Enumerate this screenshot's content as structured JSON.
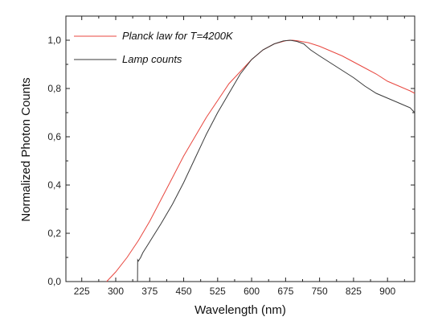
{
  "chart_data": {
    "type": "line",
    "title": "",
    "xlabel": "Wavelength (nm)",
    "ylabel": "Normalized Photon Counts",
    "xlim": [
      190,
      960
    ],
    "ylim": [
      0,
      1.1
    ],
    "x_ticks": [
      225,
      300,
      375,
      450,
      525,
      600,
      675,
      750,
      825,
      900
    ],
    "x_tick_labels": [
      "225",
      "300",
      "375",
      "450",
      "525",
      "600",
      "675",
      "750",
      "825",
      "900"
    ],
    "y_ticks": [
      0,
      0.2,
      0.4,
      0.6,
      0.8,
      1.0
    ],
    "y_tick_labels": [
      "0,0",
      "0,2",
      "0,4",
      "0,6",
      "0,8",
      "1,0"
    ],
    "grid": false,
    "legend_position": "top-left",
    "series": [
      {
        "name": "Planck law for T=4200K",
        "color": "#e8473f",
        "x": [
          280,
          300,
          325,
          350,
          375,
          400,
          425,
          450,
          475,
          500,
          525,
          550,
          575,
          600,
          625,
          650,
          675,
          690,
          700,
          725,
          750,
          775,
          800,
          825,
          850,
          875,
          900,
          925,
          950,
          960
        ],
        "y": [
          0.0,
          0.04,
          0.1,
          0.17,
          0.25,
          0.34,
          0.43,
          0.52,
          0.6,
          0.68,
          0.75,
          0.82,
          0.87,
          0.92,
          0.96,
          0.985,
          0.998,
          1.0,
          0.998,
          0.99,
          0.975,
          0.955,
          0.935,
          0.91,
          0.885,
          0.86,
          0.83,
          0.81,
          0.79,
          0.78
        ]
      },
      {
        "name": "Lamp counts",
        "color": "#3a3a3a",
        "x": [
          347,
          348,
          348.5,
          350,
          355,
          360,
          370,
          380,
          400,
          425,
          450,
          475,
          500,
          525,
          550,
          575,
          600,
          625,
          650,
          670,
          685,
          700,
          715,
          730,
          750,
          775,
          800,
          825,
          850,
          875,
          900,
          925,
          950,
          960
        ],
        "y": [
          0.0,
          0.0,
          0.09,
          0.085,
          0.1,
          0.12,
          0.15,
          0.18,
          0.24,
          0.32,
          0.41,
          0.51,
          0.61,
          0.7,
          0.78,
          0.86,
          0.92,
          0.96,
          0.985,
          0.997,
          1.0,
          0.995,
          0.985,
          0.96,
          0.935,
          0.905,
          0.875,
          0.845,
          0.81,
          0.78,
          0.76,
          0.74,
          0.72,
          0.7
        ]
      }
    ]
  }
}
